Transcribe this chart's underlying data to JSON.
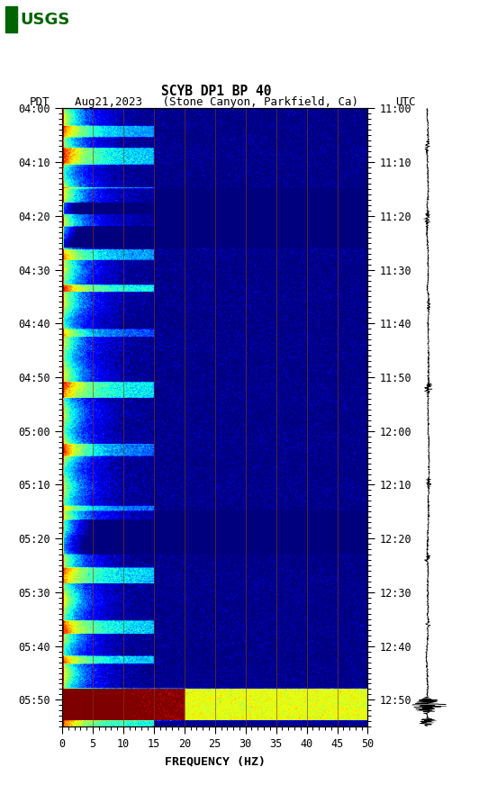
{
  "title_line1": "SCYB DP1 BP 40",
  "title_line2_left": "PDT",
  "title_line2_mid": "Aug21,2023   (Stone Canyon, Parkfield, Ca)",
  "title_line2_right": "UTC",
  "xlabel": "FREQUENCY (HZ)",
  "freq_min": 0,
  "freq_max": 50,
  "ytick_pdt": [
    "04:00",
    "04:10",
    "04:20",
    "04:30",
    "04:40",
    "04:50",
    "05:00",
    "05:10",
    "05:20",
    "05:30",
    "05:40",
    "05:50"
  ],
  "ytick_utc": [
    "11:00",
    "11:10",
    "11:20",
    "11:30",
    "11:40",
    "11:50",
    "12:00",
    "12:10",
    "12:20",
    "12:30",
    "12:40",
    "12:50"
  ],
  "xticks": [
    0,
    5,
    10,
    15,
    20,
    25,
    30,
    35,
    40,
    45,
    50
  ],
  "vertical_lines_freq": [
    5,
    10,
    15,
    20,
    25,
    30,
    35,
    40,
    45
  ],
  "figure_width": 5.52,
  "figure_height": 8.92,
  "total_minutes": 115,
  "n_time": 700,
  "n_freq": 400,
  "vline_color": "#8B3A00",
  "vline_alpha": 0.7,
  "vline_lw": 0.6
}
